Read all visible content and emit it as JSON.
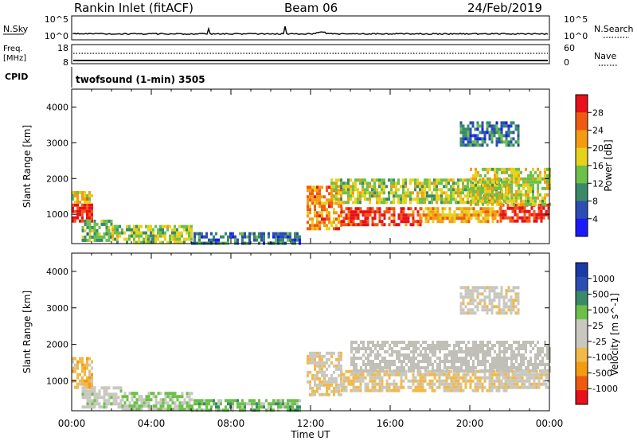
{
  "header": {
    "station": "Rankin Inlet (fitACF)",
    "beam": "Beam 06",
    "date": "24/Feb/2019"
  },
  "strip": {
    "nsky_label": "N.Sky",
    "nsky_ticks": [
      "10^5",
      "10^0"
    ],
    "nsearch_label": "N.Search",
    "nsearch_ticks": [
      "10^5",
      "10^0"
    ],
    "freq_label": "Freq.",
    "freq_unit": "[MHz]",
    "freq_ticks": [
      "18",
      "8"
    ],
    "nave_label": "Nave",
    "nave_ticks": [
      "60",
      "0"
    ],
    "cpid_label": "CPID",
    "cpid_text": "twofsound (1-min) 3505"
  },
  "xaxis": {
    "ticks": [
      "00:00",
      "04:00",
      "08:00",
      "12:00",
      "16:00",
      "20:00",
      "00:00"
    ],
    "label": "Time UT"
  },
  "colors": {
    "power_scale": [
      "#1a1aff",
      "#2c4db3",
      "#3a8a6a",
      "#6cc04a",
      "#e6d21a",
      "#f39c12",
      "#f05a10",
      "#e8101a"
    ],
    "velocity_scale": [
      "#e8101a",
      "#f05a10",
      "#f39c12",
      "#f2b84a",
      "#c8c8c0",
      "#c8c8c0",
      "#6cc04a",
      "#3a8a6a",
      "#2c4db3",
      "#1a3aa8"
    ],
    "ground_scatter": "#c0c0b8"
  },
  "chart_data": [
    {
      "type": "heatmap",
      "name": "power",
      "xlabel": "",
      "ylabel": "Slant Range [km]",
      "xlim": [
        "00:00",
        "24:00"
      ],
      "ylim": [
        180,
        4500
      ],
      "yticks": [
        "1000",
        "2000",
        "3000",
        "4000"
      ],
      "colorbar": {
        "label": "Power [dB]",
        "ticks": [
          "28",
          "24",
          "20",
          "16",
          "12",
          "8",
          "4"
        ],
        "range": [
          0,
          30
        ]
      },
      "regions": [
        {
          "t0": 0.0,
          "t1": 1.0,
          "r0": 850,
          "r1": 1300,
          "value": 28
        },
        {
          "t0": 0.0,
          "t1": 1.0,
          "r0": 1300,
          "r1": 1650,
          "value": 18
        },
        {
          "t0": 0.5,
          "t1": 2.0,
          "r0": 300,
          "r1": 850,
          "value": 12
        },
        {
          "t0": 2.0,
          "t1": 6.0,
          "r0": 250,
          "r1": 700,
          "value": 14
        },
        {
          "t0": 6.0,
          "t1": 11.5,
          "r0": 200,
          "r1": 500,
          "value": 8
        },
        {
          "t0": 11.8,
          "t1": 13.5,
          "r0": 600,
          "r1": 1800,
          "value": 22
        },
        {
          "t0": 13.5,
          "t1": 17.5,
          "r0": 700,
          "r1": 1200,
          "value": 27
        },
        {
          "t0": 13.0,
          "t1": 22.0,
          "r0": 1300,
          "r1": 2000,
          "value": 15
        },
        {
          "t0": 17.5,
          "t1": 21.5,
          "r0": 800,
          "r1": 1200,
          "value": 20
        },
        {
          "t0": 21.5,
          "t1": 24.0,
          "r0": 800,
          "r1": 1300,
          "value": 28
        },
        {
          "t0": 20.0,
          "t1": 24.0,
          "r0": 1300,
          "r1": 2300,
          "value": 16
        },
        {
          "t0": 19.5,
          "t1": 22.5,
          "r0": 2900,
          "r1": 3600,
          "value": 8
        }
      ]
    },
    {
      "type": "heatmap",
      "name": "velocity",
      "xlabel": "Time UT",
      "ylabel": "Slant Range [km]",
      "xlim": [
        "00:00",
        "24:00"
      ],
      "ylim": [
        180,
        4500
      ],
      "yticks": [
        "1000",
        "2000",
        "3000",
        "4000"
      ],
      "colorbar": {
        "label": "Velocity [m s^-1]",
        "ticks": [
          "1000",
          "500",
          "100",
          "25",
          "-25",
          "-100",
          "-500",
          "-1000"
        ],
        "range": [
          -1000,
          1000
        ]
      },
      "regions": [
        {
          "t0": 0.0,
          "t1": 1.0,
          "r0": 850,
          "r1": 1650,
          "value": -300
        },
        {
          "t0": 0.5,
          "t1": 2.5,
          "r0": 300,
          "r1": 850,
          "value": 80
        },
        {
          "t0": 2.5,
          "t1": 6.0,
          "r0": 250,
          "r1": 700,
          "value": 200
        },
        {
          "t0": 6.0,
          "t1": 11.5,
          "r0": 200,
          "r1": 500,
          "value": 300
        },
        {
          "t0": 11.8,
          "t1": 13.5,
          "r0": 600,
          "r1": 1800,
          "value": -150
        },
        {
          "t0": 13.5,
          "t1": 22.0,
          "r0": 700,
          "r1": 1300,
          "value": -200
        },
        {
          "t0": 14.0,
          "t1": 24.0,
          "r0": 1300,
          "r1": 2100,
          "value": 0,
          "ground_scatter": true
        },
        {
          "t0": 21.5,
          "t1": 24.0,
          "r0": 800,
          "r1": 1300,
          "value": -120
        },
        {
          "t0": 19.5,
          "t1": 22.5,
          "r0": 2900,
          "r1": 3600,
          "value": -90
        }
      ]
    }
  ]
}
